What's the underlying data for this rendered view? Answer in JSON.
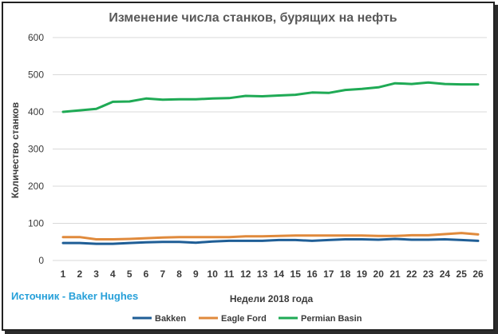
{
  "chart_data": {
    "type": "line",
    "title": "Изменение числа станков, бурящих на нефть",
    "xlabel": "Недели 2018 года",
    "ylabel": "Количество станков",
    "source": "Источник - Baker Hughes",
    "ylim": [
      0,
      600
    ],
    "yticks": [
      0,
      100,
      200,
      300,
      400,
      500,
      600
    ],
    "grid": true,
    "legend_position": "bottom",
    "categories": [
      "1",
      "2",
      "3",
      "4",
      "5",
      "6",
      "7",
      "8",
      "9",
      "10",
      "11",
      "12",
      "13",
      "14",
      "15",
      "16",
      "17",
      "18",
      "19",
      "20",
      "21",
      "22",
      "23",
      "24",
      "25",
      "26"
    ],
    "series": [
      {
        "name": "Bakken",
        "color": "#1f5e96",
        "values": [
          47,
          47,
          45,
          45,
          47,
          49,
          50,
          50,
          48,
          51,
          53,
          53,
          53,
          55,
          55,
          53,
          55,
          57,
          57,
          56,
          58,
          56,
          56,
          57,
          55,
          53
        ]
      },
      {
        "name": "Eagle Ford",
        "color": "#e08a3c",
        "values": [
          63,
          63,
          57,
          57,
          58,
          60,
          62,
          63,
          63,
          63,
          63,
          65,
          65,
          66,
          67,
          67,
          67,
          67,
          67,
          66,
          66,
          68,
          68,
          71,
          74,
          70
        ]
      },
      {
        "name": "Permian Basin",
        "color": "#1faa55",
        "values": [
          400,
          404,
          408,
          427,
          428,
          436,
          433,
          434,
          434,
          436,
          437,
          443,
          442,
          444,
          446,
          452,
          451,
          459,
          462,
          466,
          477,
          475,
          479,
          475,
          474,
          474
        ]
      }
    ]
  }
}
